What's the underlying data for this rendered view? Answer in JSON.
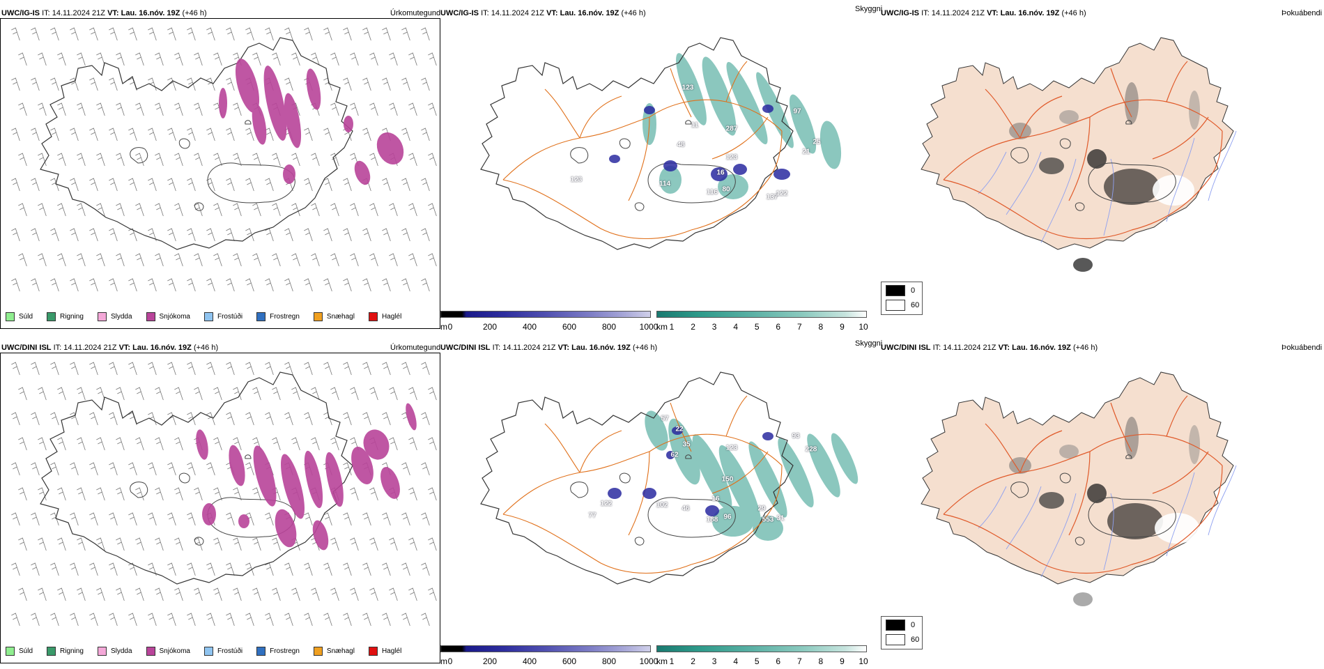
{
  "rows": [
    {
      "precip": {
        "model": "UWC/IG-IS",
        "it_label": "IT:",
        "it_value": "14.11.2024 21Z",
        "vt_label": "VT:",
        "vt_value": "Lau. 16.nóv. 19Z",
        "lead": "(+46 h)",
        "title": "Úrkomutegund"
      },
      "visibility": {
        "model": "UWC/IG-IS",
        "it_label": "IT:",
        "it_value": "14.11.2024 21Z",
        "vt_label": "VT:",
        "vt_value": "Lau. 16.nóv. 19Z",
        "lead": "(+46 h)",
        "title": "Skyggni",
        "labels": [
          "123",
          "11",
          "48",
          "287",
          "97",
          "25",
          "21",
          "123",
          "16",
          "123",
          "114",
          "116",
          "80",
          "137",
          "122"
        ]
      },
      "fog": {
        "model": "UWC/IG-IS",
        "it_label": "IT:",
        "it_value": "14.11.2024 21Z",
        "vt_label": "VT:",
        "vt_value": "Lau. 16.nóv. 19Z",
        "lead": "(+46 h)",
        "title": "Þokuábendi"
      }
    },
    {
      "precip": {
        "model": "UWC/DINI ISL",
        "it_label": "IT:",
        "it_value": "14.11.2024 21Z",
        "vt_label": "VT:",
        "vt_value": "Lau. 16.nóv. 19Z",
        "lead": "(+46 h)",
        "title": "Úrkomutegund"
      },
      "visibility": {
        "model": "UWC/DINI ISL",
        "it_label": "IT:",
        "it_value": "14.11.2024 21Z",
        "vt_label": "VT:",
        "vt_value": "Lau. 16.nóv. 19Z",
        "lead": "(+46 h)",
        "title": "Skyggni",
        "labels": [
          "57",
          "22",
          "35",
          "62",
          "123",
          "93",
          "228",
          "150",
          "16",
          "122",
          "77",
          "102",
          "46",
          "188",
          "96",
          "29",
          "553",
          "31"
        ]
      },
      "fog": {
        "model": "UWC/DINI ISL",
        "it_label": "IT:",
        "it_value": "14.11.2024 21Z",
        "vt_label": "VT:",
        "vt_value": "Lau. 16.nóv. 19Z",
        "lead": "(+46 h)",
        "title": "Þokuábendi"
      }
    }
  ],
  "precip_legend": [
    {
      "label": "Súld",
      "color": "#90ee90"
    },
    {
      "label": "Rigning",
      "color": "#3a9a6a"
    },
    {
      "label": "Slydda",
      "color": "#f4a8d8"
    },
    {
      "label": "Snjókoma",
      "color": "#b9449a"
    },
    {
      "label": "Frostúði",
      "color": "#8fc4f0"
    },
    {
      "label": "Frostregn",
      "color": "#3070c0"
    },
    {
      "label": "Snæhagl",
      "color": "#f0a020"
    },
    {
      "label": "Haglél",
      "color": "#e01010"
    }
  ],
  "height_bar": {
    "unit": "m",
    "ticks": [
      "0",
      "200",
      "400",
      "600",
      "800",
      "1000"
    ]
  },
  "vis_bar": {
    "unit": "km",
    "ticks": [
      "1",
      "2",
      "3",
      "4",
      "5",
      "6",
      "7",
      "8",
      "9",
      "10"
    ]
  },
  "fog_legend": [
    {
      "label": "0",
      "color": "#000000"
    },
    {
      "label": "60",
      "color": "#ffffff"
    }
  ],
  "colors": {
    "snow": "#b9449a",
    "land_fog": "#f5dfcf",
    "roads": "#e0701a",
    "vis_teal": "#2e9a8a",
    "vis_blue": "#2a2aa0"
  }
}
